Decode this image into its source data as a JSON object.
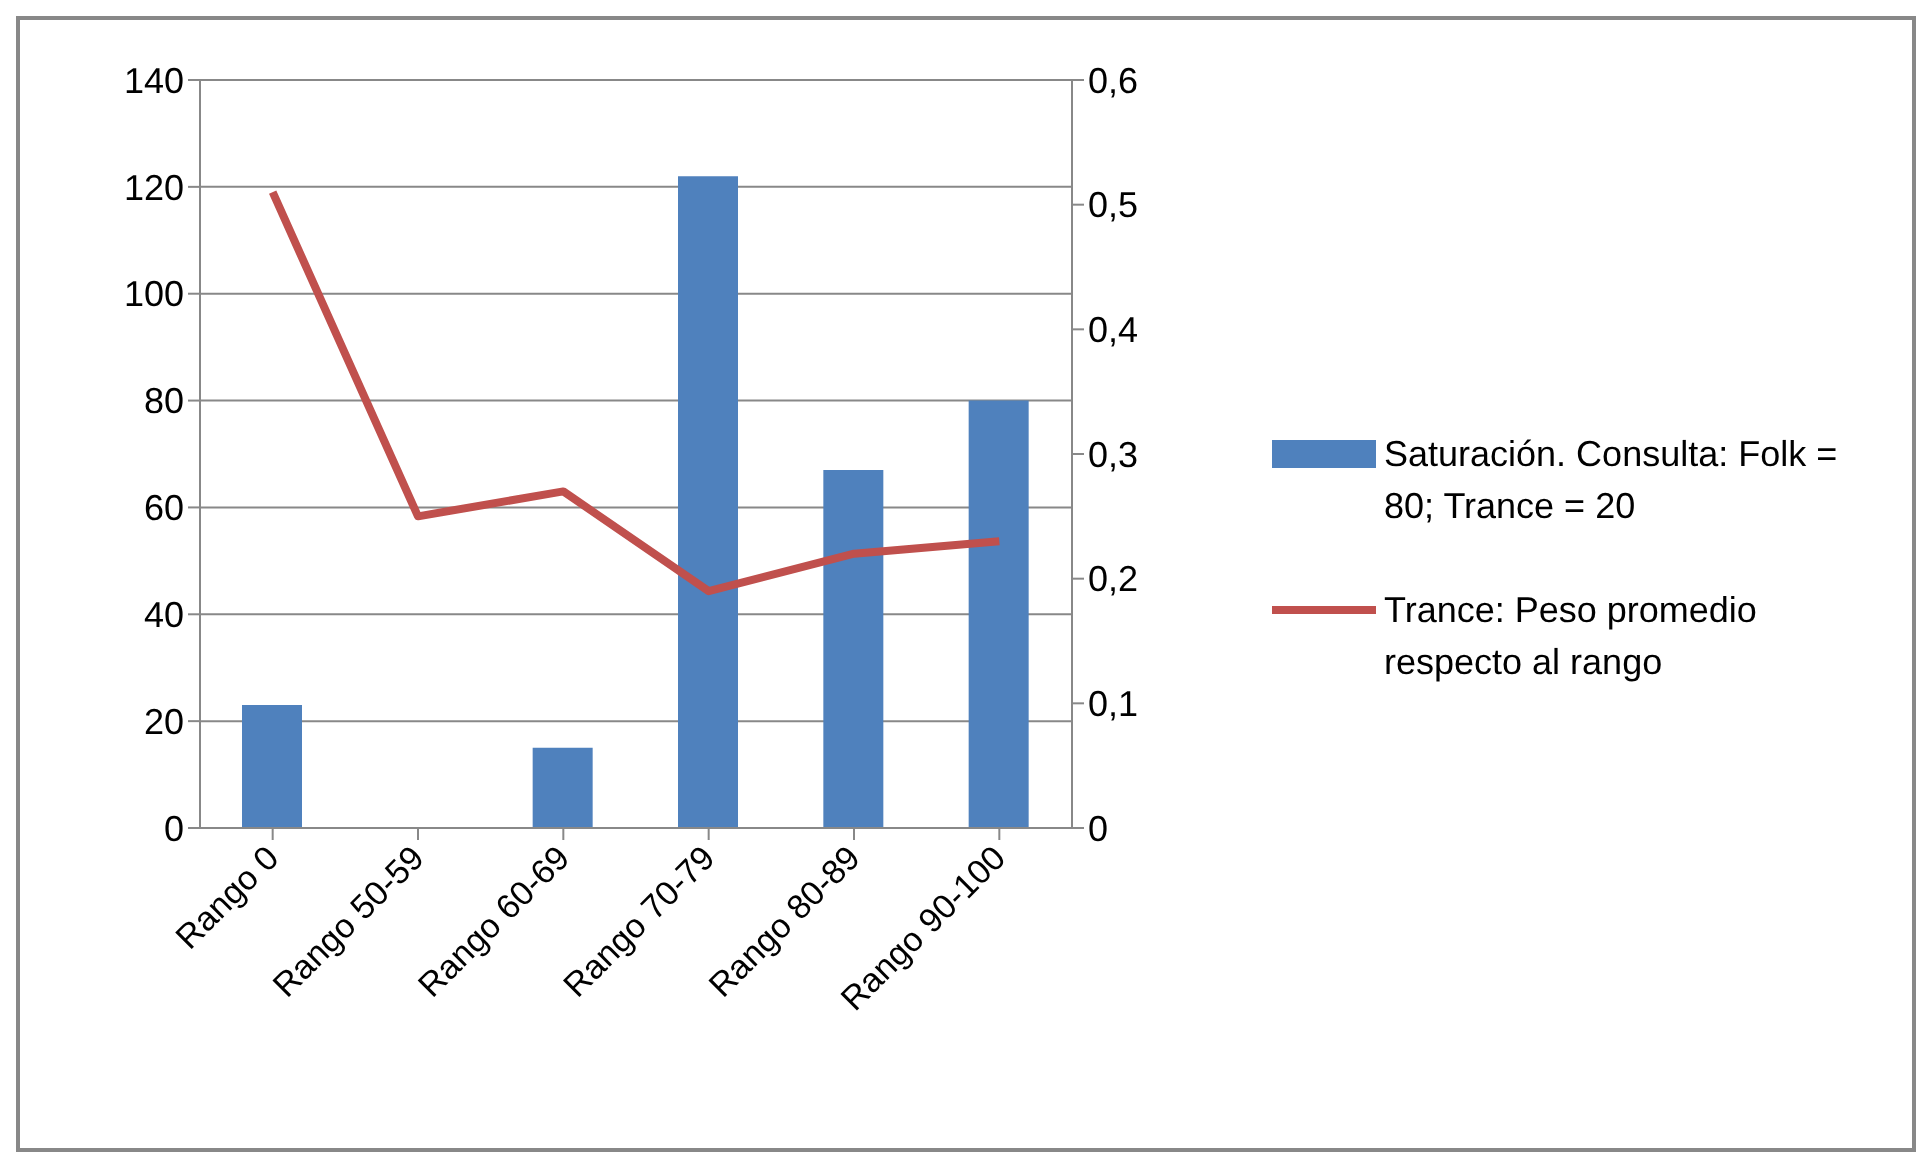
{
  "chart_data": {
    "type": "bar",
    "categories": [
      "Rango 0",
      "Rango 50-59",
      "Rango 60-69",
      "Rango 70-79",
      "Rango 80-89",
      "Rango 90-100"
    ],
    "series": [
      {
        "name": "Saturación. Consulta: Folk = 80; Trance = 20",
        "color": "#4f81bd",
        "values": [
          23,
          0,
          15,
          122,
          67,
          80
        ]
      },
      {
        "name": "Trance: Peso promedio respecto al rango",
        "type": "line",
        "axis": "y2",
        "color": "#c0504d",
        "values": [
          0.51,
          0.25,
          0.27,
          0.19,
          0.22,
          0.23
        ]
      }
    ],
    "ylim": [
      0,
      140
    ],
    "yticks": [
      0,
      20,
      40,
      60,
      80,
      100,
      120,
      140
    ],
    "y2lim": [
      0,
      0.6
    ],
    "y2ticks": [
      {
        "value": 0,
        "label": "0"
      },
      {
        "value": 0.1,
        "label": "0,1"
      },
      {
        "value": 0.2,
        "label": "0,2"
      },
      {
        "value": 0.3,
        "label": "0,3"
      },
      {
        "value": 0.4,
        "label": "0,4"
      },
      {
        "value": 0.5,
        "label": "0,5"
      },
      {
        "value": 0.6,
        "label": "0,6"
      }
    ],
    "grid": "y",
    "legend": "right",
    "marker": "none"
  }
}
